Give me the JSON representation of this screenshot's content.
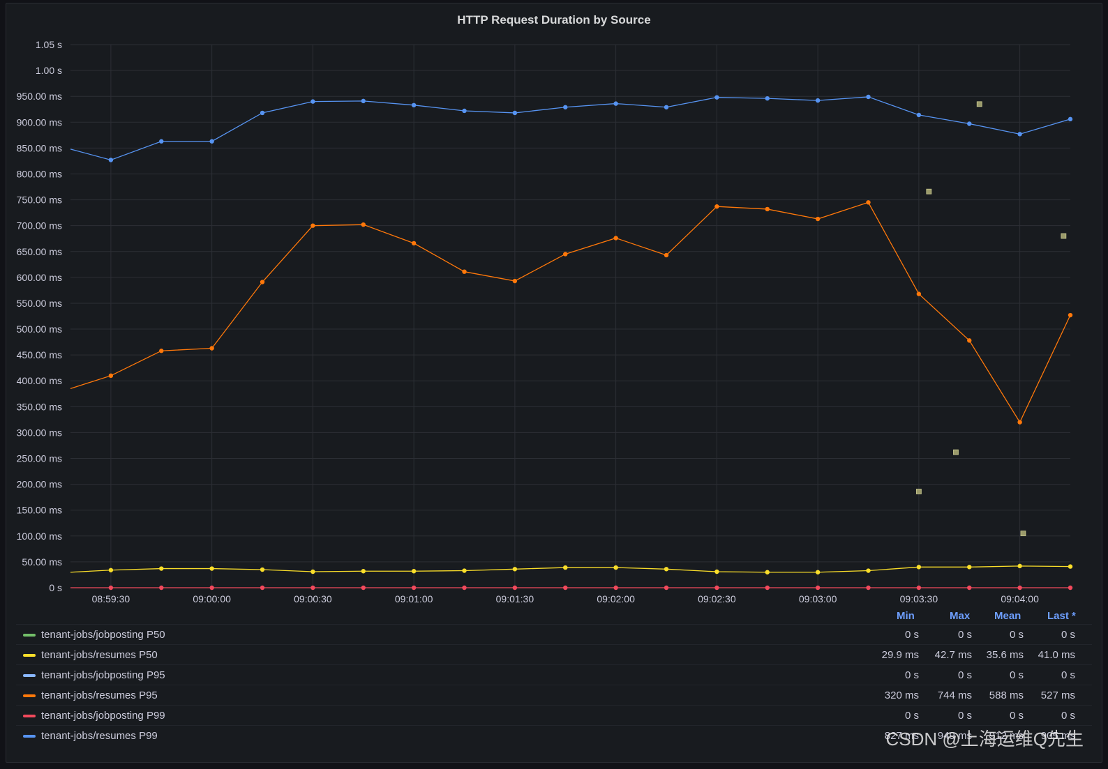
{
  "title": "HTTP Request Duration by Source",
  "watermark": "CSDN @上海运维Q先生",
  "chart_data": {
    "type": "line",
    "title": "HTTP Request Duration by Source",
    "xlabel": "",
    "ylabel": "",
    "ylim": [
      0,
      1050
    ],
    "yticks": [
      "0 s",
      "50.00 ms",
      "100.00 ms",
      "150.00 ms",
      "200.00 ms",
      "250.00 ms",
      "300.00 ms",
      "350.00 ms",
      "400.00 ms",
      "450.00 ms",
      "500.00 ms",
      "550.00 ms",
      "600.00 ms",
      "650.00 ms",
      "700.00 ms",
      "750.00 ms",
      "800.00 ms",
      "850.00 ms",
      "900.00 ms",
      "950.00 ms",
      "1.00 s",
      "1.05 s"
    ],
    "xticks": [
      "08:59:30",
      "09:00:00",
      "09:00:30",
      "09:01:00",
      "09:01:30",
      "09:02:00",
      "09:02:30",
      "09:03:00",
      "09:03:30",
      "09:04:00"
    ],
    "x": [
      "08:59:18",
      "08:59:30",
      "08:59:45",
      "09:00:00",
      "09:00:15",
      "09:00:30",
      "09:00:45",
      "09:01:00",
      "09:01:15",
      "09:01:30",
      "09:01:45",
      "09:02:00",
      "09:02:15",
      "09:02:30",
      "09:02:45",
      "09:03:00",
      "09:03:15",
      "09:03:30",
      "09:03:45",
      "09:04:00",
      "09:04:15"
    ],
    "grid": true,
    "legend_position": "bottom",
    "series": [
      {
        "name": "tenant-jobs/resumes P99",
        "color": "#5794f2",
        "values": [
          848,
          827,
          863,
          863,
          918,
          940,
          941,
          933,
          922,
          918,
          929,
          936,
          929,
          948,
          946,
          942,
          949,
          914,
          897,
          877,
          906
        ]
      },
      {
        "name": "tenant-jobs/resumes P95",
        "color": "#ff780a",
        "values": [
          385,
          410,
          458,
          463,
          591,
          700,
          702,
          666,
          611,
          593,
          645,
          676,
          643,
          737,
          732,
          713,
          745,
          568,
          478,
          320,
          527
        ]
      },
      {
        "name": "tenant-jobs/resumes P50",
        "color": "#fade2a",
        "values": [
          30,
          34,
          37,
          37,
          35,
          31,
          32,
          32,
          33,
          36,
          39,
          39,
          36,
          31,
          30,
          30,
          33,
          40,
          40,
          42,
          41
        ]
      },
      {
        "name": "tenant-jobs/jobposting P99",
        "color": "#f2495c",
        "values": [
          0,
          0,
          0,
          0,
          0,
          0,
          0,
          0,
          0,
          0,
          0,
          0,
          0,
          0,
          0,
          0,
          0,
          0,
          0,
          0,
          0
        ]
      }
    ],
    "scatter": {
      "color": "#9a9a6a",
      "points": [
        {
          "x": "09:03:30",
          "y": 186
        },
        {
          "x": "09:03:33",
          "y": 766
        },
        {
          "x": "09:03:41",
          "y": 262
        },
        {
          "x": "09:03:48",
          "y": 935
        },
        {
          "x": "09:04:01",
          "y": 105
        },
        {
          "x": "09:04:13",
          "y": 680
        }
      ]
    }
  },
  "legend": {
    "headers": [
      "Min",
      "Max",
      "Mean",
      "Last *"
    ],
    "rows": [
      {
        "name": "tenant-jobs/jobposting P50",
        "color": "#73bf69",
        "min": "0 s",
        "max": "0 s",
        "mean": "0 s",
        "last": "0 s"
      },
      {
        "name": "tenant-jobs/resumes P50",
        "color": "#fade2a",
        "min": "29.9 ms",
        "max": "42.7 ms",
        "mean": "35.6 ms",
        "last": "41.0 ms"
      },
      {
        "name": "tenant-jobs/jobposting P95",
        "color": "#8ab8ff",
        "min": "0 s",
        "max": "0 s",
        "mean": "0 s",
        "last": "0 s"
      },
      {
        "name": "tenant-jobs/resumes P95",
        "color": "#ff780a",
        "min": "320 ms",
        "max": "744 ms",
        "mean": "588 ms",
        "last": "527 ms"
      },
      {
        "name": "tenant-jobs/jobposting P99",
        "color": "#f2495c",
        "min": "0 s",
        "max": "0 s",
        "mean": "0 s",
        "last": "0 s"
      },
      {
        "name": "tenant-jobs/resumes P99",
        "color": "#5794f2",
        "min": "827 ms",
        "max": "949 ms",
        "mean": "912 ms",
        "last": "905 ms"
      }
    ]
  }
}
